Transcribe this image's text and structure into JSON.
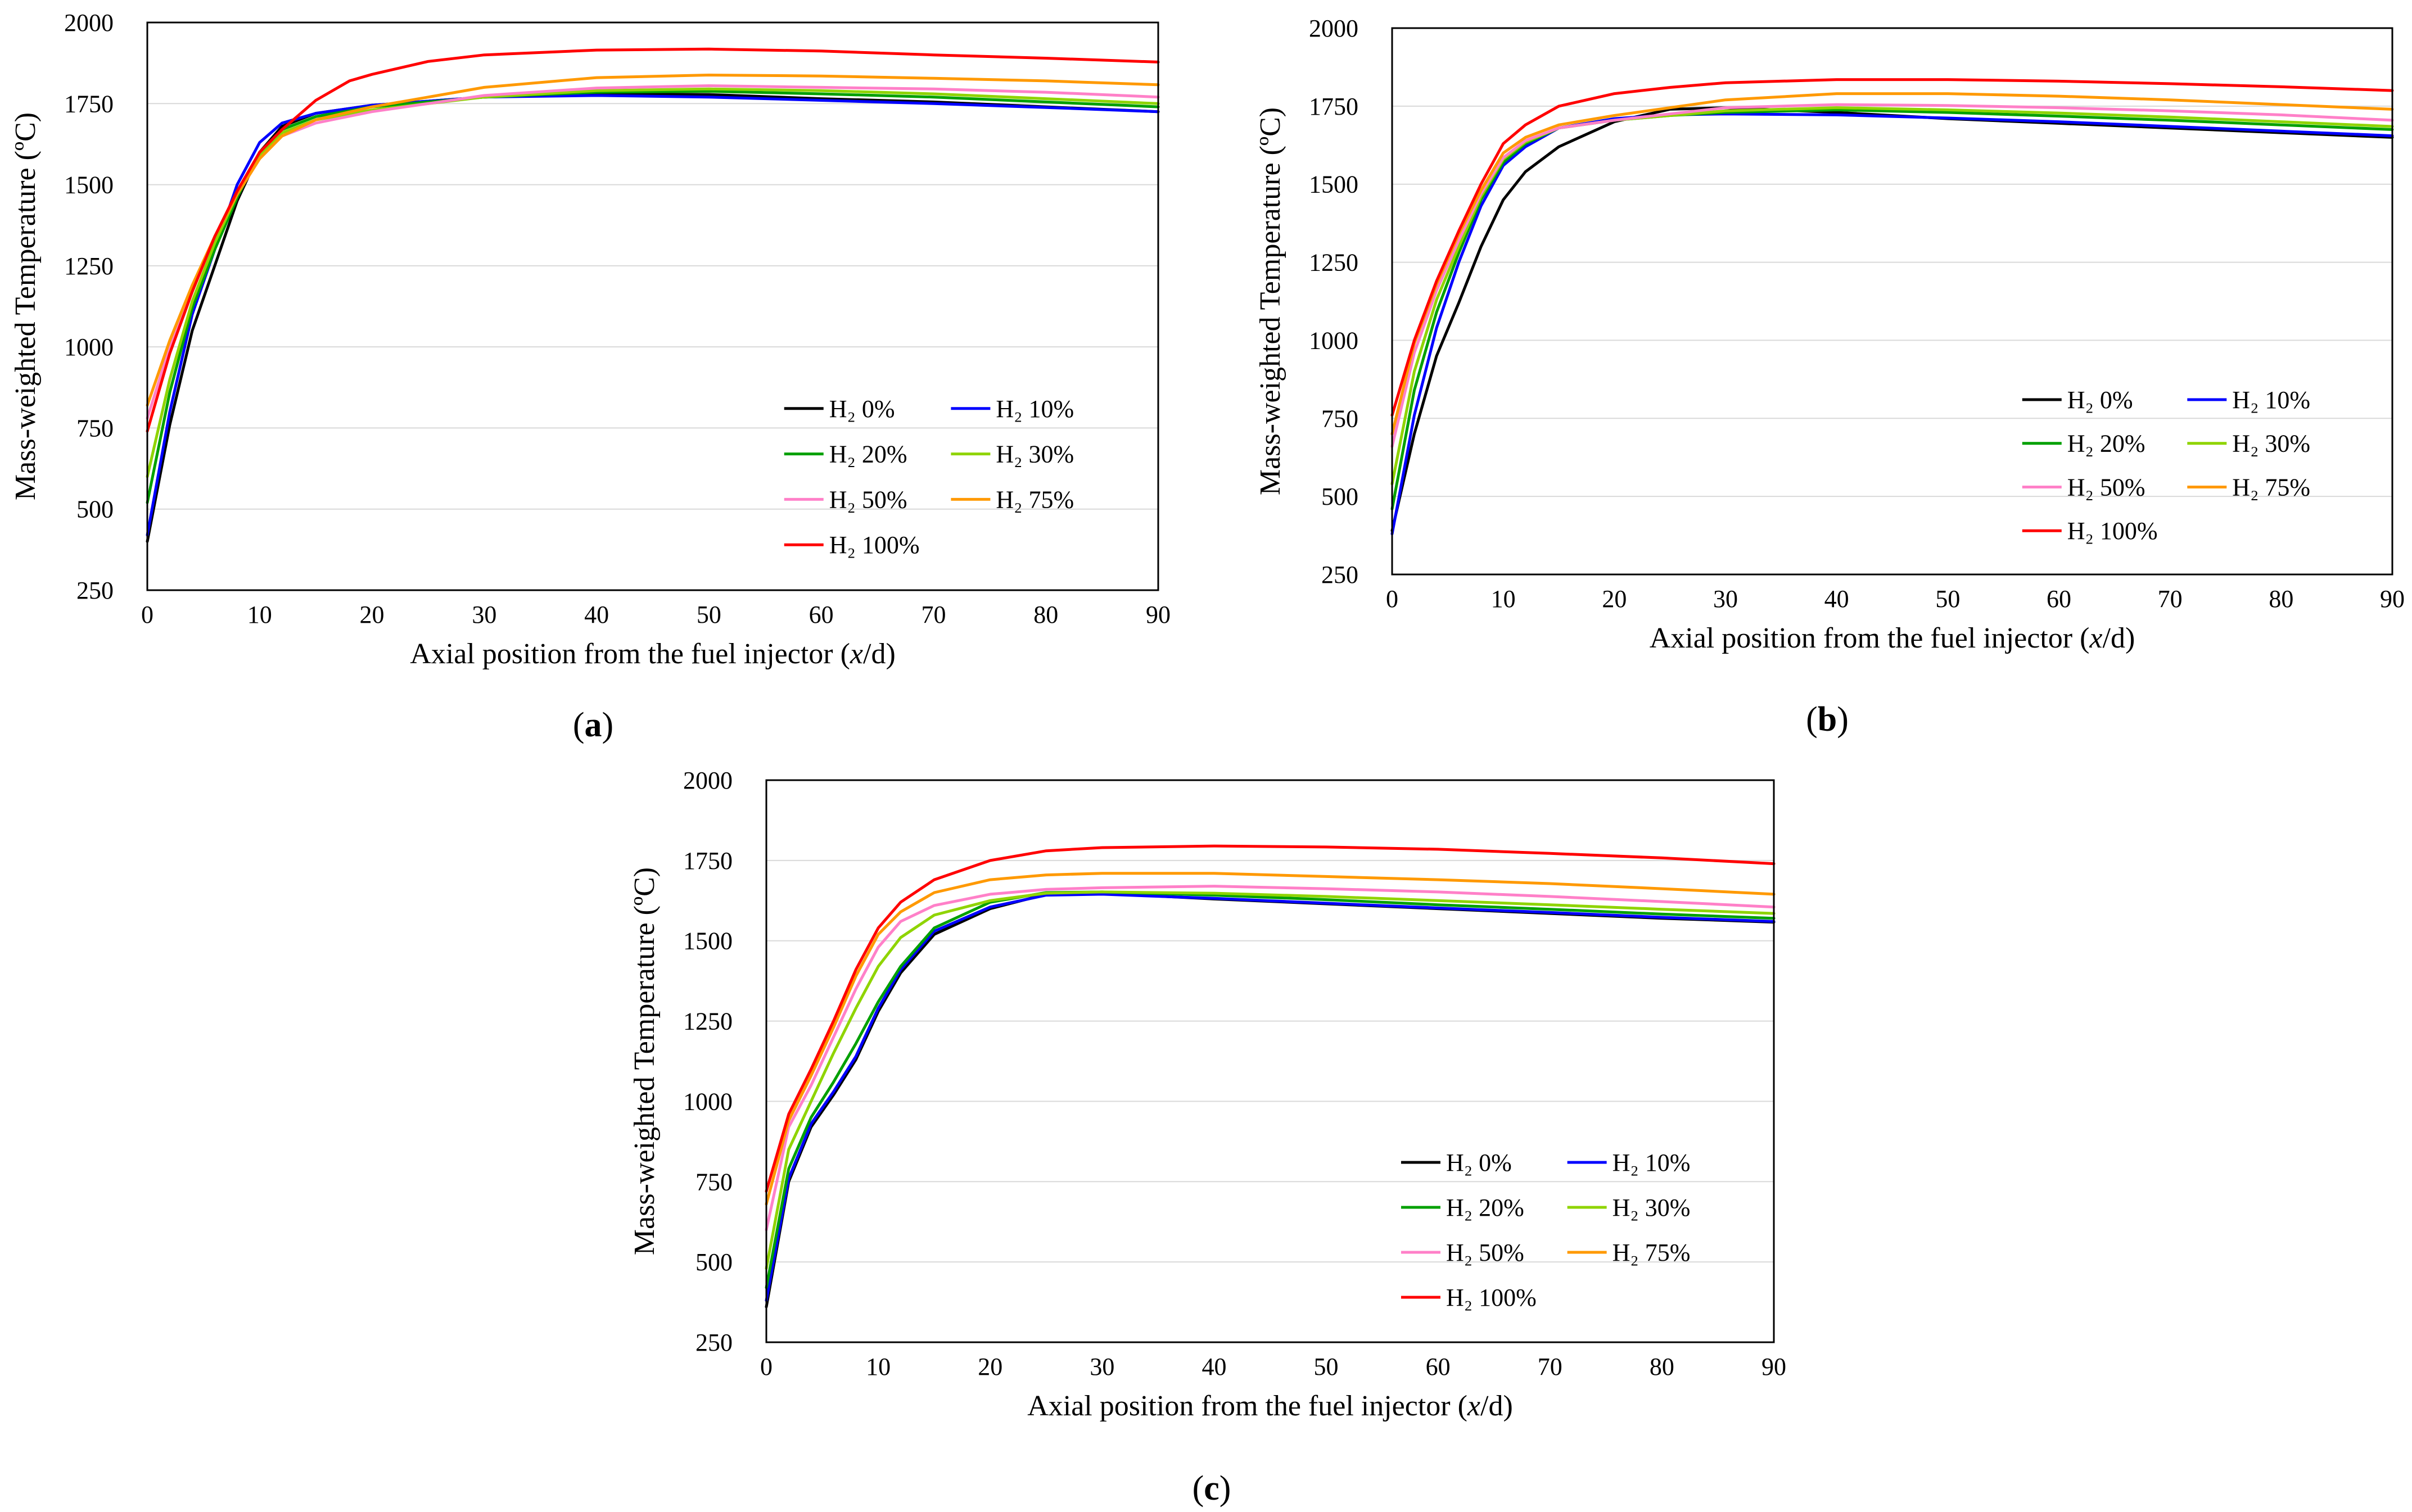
{
  "colors": {
    "H2 0%": "#000000",
    "H2 10%": "#0000ff",
    "H2 20%": "#00a000",
    "H2 30%": "#8fd400",
    "H2 50%": "#ff80c8",
    "H2 75%": "#ff9900",
    "H2 100%": "#ff0000"
  },
  "chart_data": [
    {
      "type": "line",
      "panel_label": "(a)",
      "xlabel": "Axial position  from the fuel injector  (x/d)",
      "ylabel": "Mass-weighted Temperature (ºC)",
      "xlim": [
        0,
        90
      ],
      "ylim": [
        250,
        2000
      ],
      "xticks": [
        0,
        10,
        20,
        30,
        40,
        50,
        60,
        70,
        80,
        90
      ],
      "yticks": [
        250,
        500,
        750,
        1000,
        1250,
        1500,
        1750,
        2000
      ],
      "grid": "horizontal",
      "legend": "bottom-right",
      "series": [
        {
          "name": "H₂ 0%",
          "x": [
            0,
            2,
            4,
            6,
            8,
            10,
            12,
            15,
            20,
            30,
            40,
            50,
            60,
            70,
            80,
            90
          ],
          "values": [
            400,
            760,
            1050,
            1250,
            1450,
            1600,
            1680,
            1720,
            1745,
            1770,
            1780,
            1778,
            1765,
            1755,
            1740,
            1725
          ]
        },
        {
          "name": "H₂ 10%",
          "x": [
            0,
            2,
            4,
            6,
            8,
            10,
            12,
            15,
            20,
            30,
            40,
            50,
            60,
            70,
            80,
            90
          ],
          "values": [
            420,
            800,
            1100,
            1300,
            1500,
            1630,
            1690,
            1720,
            1745,
            1770,
            1775,
            1770,
            1760,
            1750,
            1738,
            1725
          ]
        },
        {
          "name": "H₂ 20%",
          "x": [
            0,
            2,
            4,
            6,
            8,
            10,
            12,
            15,
            20,
            30,
            40,
            50,
            60,
            70,
            80,
            90
          ],
          "values": [
            520,
            860,
            1120,
            1300,
            1460,
            1600,
            1670,
            1710,
            1740,
            1770,
            1785,
            1788,
            1780,
            1770,
            1755,
            1740
          ]
        },
        {
          "name": "H₂ 30%",
          "x": [
            0,
            2,
            4,
            6,
            8,
            10,
            12,
            15,
            20,
            30,
            40,
            50,
            60,
            70,
            80,
            90
          ],
          "values": [
            600,
            900,
            1140,
            1320,
            1470,
            1590,
            1660,
            1700,
            1730,
            1770,
            1790,
            1795,
            1790,
            1780,
            1765,
            1750
          ]
        },
        {
          "name": "H₂ 50%",
          "x": [
            0,
            2,
            4,
            6,
            8,
            10,
            12,
            15,
            20,
            30,
            40,
            50,
            60,
            70,
            80,
            90
          ],
          "values": [
            780,
            1000,
            1180,
            1340,
            1470,
            1580,
            1650,
            1690,
            1725,
            1775,
            1798,
            1805,
            1800,
            1795,
            1785,
            1770
          ]
        },
        {
          "name": "H₂ 75%",
          "x": [
            0,
            2,
            4,
            6,
            8,
            10,
            12,
            15,
            20,
            30,
            40,
            50,
            60,
            70,
            80,
            90
          ],
          "values": [
            820,
            1020,
            1190,
            1340,
            1470,
            1580,
            1650,
            1700,
            1740,
            1800,
            1830,
            1838,
            1835,
            1828,
            1820,
            1808
          ]
        },
        {
          "name": "H₂ 100%",
          "x": [
            0,
            2,
            4,
            6,
            8,
            10,
            12,
            15,
            18,
            20,
            25,
            30,
            40,
            50,
            60,
            70,
            80,
            90
          ],
          "values": [
            740,
            980,
            1170,
            1340,
            1480,
            1600,
            1670,
            1760,
            1820,
            1840,
            1880,
            1900,
            1915,
            1918,
            1912,
            1900,
            1890,
            1878
          ]
        }
      ]
    },
    {
      "type": "line",
      "panel_label": "(b)",
      "xlabel": "Axial position  from the fuel injector  (x/d)",
      "ylabel": "Mass-weighted Temperature (ºC)",
      "xlim": [
        0,
        90
      ],
      "ylim": [
        250,
        2000
      ],
      "xticks": [
        0,
        10,
        20,
        30,
        40,
        50,
        60,
        70,
        80,
        90
      ],
      "yticks": [
        250,
        500,
        750,
        1000,
        1250,
        1500,
        1750,
        2000
      ],
      "grid": "horizontal",
      "legend": "bottom-right",
      "series": [
        {
          "name": "H₂ 0%",
          "x": [
            0,
            2,
            4,
            6,
            8,
            10,
            12,
            15,
            20,
            25,
            30,
            40,
            50,
            60,
            70,
            80,
            90
          ],
          "values": [
            390,
            700,
            950,
            1120,
            1300,
            1450,
            1540,
            1620,
            1700,
            1740,
            1745,
            1730,
            1710,
            1695,
            1680,
            1665,
            1650
          ]
        },
        {
          "name": "H₂ 10%",
          "x": [
            0,
            2,
            4,
            6,
            8,
            10,
            12,
            15,
            20,
            25,
            30,
            40,
            50,
            60,
            70,
            80,
            90
          ],
          "values": [
            380,
            760,
            1040,
            1250,
            1430,
            1560,
            1620,
            1680,
            1710,
            1722,
            1725,
            1722,
            1712,
            1700,
            1685,
            1670,
            1655
          ]
        },
        {
          "name": "H₂ 20%",
          "x": [
            0,
            2,
            4,
            6,
            8,
            10,
            12,
            15,
            20,
            25,
            30,
            40,
            50,
            60,
            70,
            80,
            90
          ],
          "values": [
            460,
            840,
            1090,
            1280,
            1450,
            1570,
            1630,
            1680,
            1705,
            1720,
            1730,
            1738,
            1730,
            1718,
            1705,
            1690,
            1675
          ]
        },
        {
          "name": "H₂ 30%",
          "x": [
            0,
            2,
            4,
            6,
            8,
            10,
            12,
            15,
            20,
            25,
            30,
            40,
            50,
            60,
            70,
            80,
            90
          ],
          "values": [
            540,
            900,
            1130,
            1300,
            1460,
            1580,
            1635,
            1680,
            1705,
            1720,
            1735,
            1745,
            1738,
            1728,
            1715,
            1700,
            1685
          ]
        },
        {
          "name": "H₂ 50%",
          "x": [
            0,
            2,
            4,
            6,
            8,
            10,
            12,
            15,
            20,
            25,
            30,
            40,
            50,
            60,
            70,
            80,
            90
          ],
          "values": [
            660,
            960,
            1160,
            1320,
            1470,
            1585,
            1640,
            1680,
            1705,
            1725,
            1745,
            1755,
            1752,
            1745,
            1735,
            1722,
            1705
          ]
        },
        {
          "name": "H₂ 75%",
          "x": [
            0,
            2,
            4,
            6,
            8,
            10,
            12,
            15,
            20,
            25,
            30,
            40,
            50,
            60,
            70,
            80,
            90
          ],
          "values": [
            700,
            990,
            1180,
            1340,
            1480,
            1600,
            1650,
            1690,
            1720,
            1745,
            1770,
            1790,
            1790,
            1782,
            1770,
            1755,
            1740
          ]
        },
        {
          "name": "H₂ 100%",
          "x": [
            0,
            2,
            4,
            6,
            8,
            10,
            12,
            15,
            20,
            25,
            30,
            40,
            50,
            60,
            70,
            80,
            90
          ],
          "values": [
            760,
            1000,
            1190,
            1350,
            1500,
            1630,
            1690,
            1750,
            1790,
            1810,
            1825,
            1835,
            1835,
            1830,
            1822,
            1812,
            1800
          ]
        }
      ]
    },
    {
      "type": "line",
      "panel_label": "(c)",
      "xlabel": "Axial position  from the fuel injector  (x/d)",
      "ylabel": "Mass-weighted Temperature (ºC)",
      "xlim": [
        0,
        90
      ],
      "ylim": [
        250,
        2000
      ],
      "xticks": [
        0,
        10,
        20,
        30,
        40,
        50,
        60,
        70,
        80,
        90
      ],
      "yticks": [
        250,
        500,
        750,
        1000,
        1250,
        1500,
        1750,
        2000
      ],
      "grid": "horizontal",
      "legend": "bottom-right",
      "series": [
        {
          "name": "H₂ 0%",
          "x": [
            0,
            2,
            4,
            6,
            8,
            10,
            12,
            15,
            20,
            25,
            30,
            40,
            50,
            60,
            70,
            80,
            90
          ],
          "values": [
            360,
            750,
            920,
            1020,
            1130,
            1280,
            1400,
            1520,
            1600,
            1645,
            1648,
            1630,
            1615,
            1600,
            1585,
            1570,
            1558
          ]
        },
        {
          "name": "H₂ 10%",
          "x": [
            0,
            2,
            4,
            6,
            8,
            10,
            12,
            15,
            20,
            25,
            30,
            40,
            50,
            60,
            70,
            80,
            90
          ],
          "values": [
            380,
            760,
            930,
            1030,
            1140,
            1290,
            1410,
            1530,
            1605,
            1642,
            1645,
            1632,
            1617,
            1602,
            1588,
            1573,
            1560
          ]
        },
        {
          "name": "H₂ 20%",
          "x": [
            0,
            2,
            4,
            6,
            8,
            10,
            12,
            15,
            20,
            25,
            30,
            40,
            50,
            60,
            70,
            80,
            90
          ],
          "values": [
            420,
            790,
            950,
            1060,
            1180,
            1310,
            1420,
            1540,
            1620,
            1650,
            1652,
            1642,
            1628,
            1612,
            1598,
            1583,
            1570
          ]
        },
        {
          "name": "H₂ 30%",
          "x": [
            0,
            2,
            4,
            6,
            8,
            10,
            12,
            15,
            20,
            25,
            30,
            40,
            50,
            60,
            70,
            80,
            90
          ],
          "values": [
            480,
            850,
            1000,
            1150,
            1290,
            1420,
            1510,
            1580,
            1625,
            1648,
            1652,
            1648,
            1638,
            1625,
            1612,
            1598,
            1585
          ]
        },
        {
          "name": "H₂ 50%",
          "x": [
            0,
            2,
            4,
            6,
            8,
            10,
            12,
            15,
            20,
            25,
            30,
            40,
            50,
            60,
            70,
            80,
            90
          ],
          "values": [
            600,
            920,
            1050,
            1200,
            1350,
            1480,
            1560,
            1610,
            1645,
            1660,
            1665,
            1670,
            1662,
            1652,
            1638,
            1622,
            1605
          ]
        },
        {
          "name": "H₂ 75%",
          "x": [
            0,
            2,
            4,
            6,
            8,
            10,
            12,
            15,
            20,
            25,
            30,
            40,
            50,
            60,
            70,
            80,
            90
          ],
          "values": [
            680,
            940,
            1080,
            1230,
            1390,
            1520,
            1590,
            1650,
            1690,
            1705,
            1710,
            1710,
            1700,
            1690,
            1678,
            1662,
            1645
          ]
        },
        {
          "name": "H₂ 100%",
          "x": [
            0,
            2,
            4,
            6,
            8,
            10,
            12,
            15,
            20,
            25,
            30,
            40,
            50,
            60,
            70,
            80,
            90
          ],
          "values": [
            720,
            960,
            1100,
            1250,
            1410,
            1540,
            1620,
            1690,
            1750,
            1780,
            1790,
            1795,
            1792,
            1785,
            1772,
            1758,
            1740
          ]
        }
      ]
    }
  ]
}
